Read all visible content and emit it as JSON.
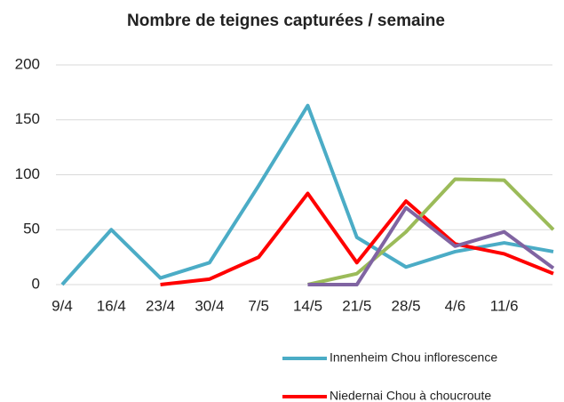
{
  "chart_data": {
    "type": "line",
    "title": "Nombre de teignes capturées / semaine",
    "categories": [
      "9/4",
      "16/4",
      "23/4",
      "30/4",
      "7/5",
      "14/5",
      "21/5",
      "28/5",
      "4/6",
      "11/6",
      null
    ],
    "series": [
      {
        "name": "Innenheim Chou inflorescence",
        "color": "#4bacc6",
        "values": [
          0,
          50,
          6,
          20,
          90,
          163,
          43,
          16,
          30,
          38,
          30
        ]
      },
      {
        "name": "Niedernai Chou à choucroute",
        "color": "#ff0000",
        "values": [
          null,
          null,
          0,
          5,
          25,
          83,
          20,
          76,
          37,
          28,
          10
        ]
      },
      {
        "color": "#9bbb59",
        "values": [
          null,
          null,
          null,
          null,
          null,
          0,
          10,
          48,
          96,
          95,
          50
        ]
      },
      {
        "color": "#8064a2",
        "values": [
          null,
          null,
          null,
          null,
          null,
          0,
          0,
          70,
          35,
          48,
          15
        ]
      }
    ],
    "ylim": [
      0,
      200
    ],
    "yticks": [
      0,
      50,
      100,
      150,
      200
    ],
    "grid": true
  }
}
